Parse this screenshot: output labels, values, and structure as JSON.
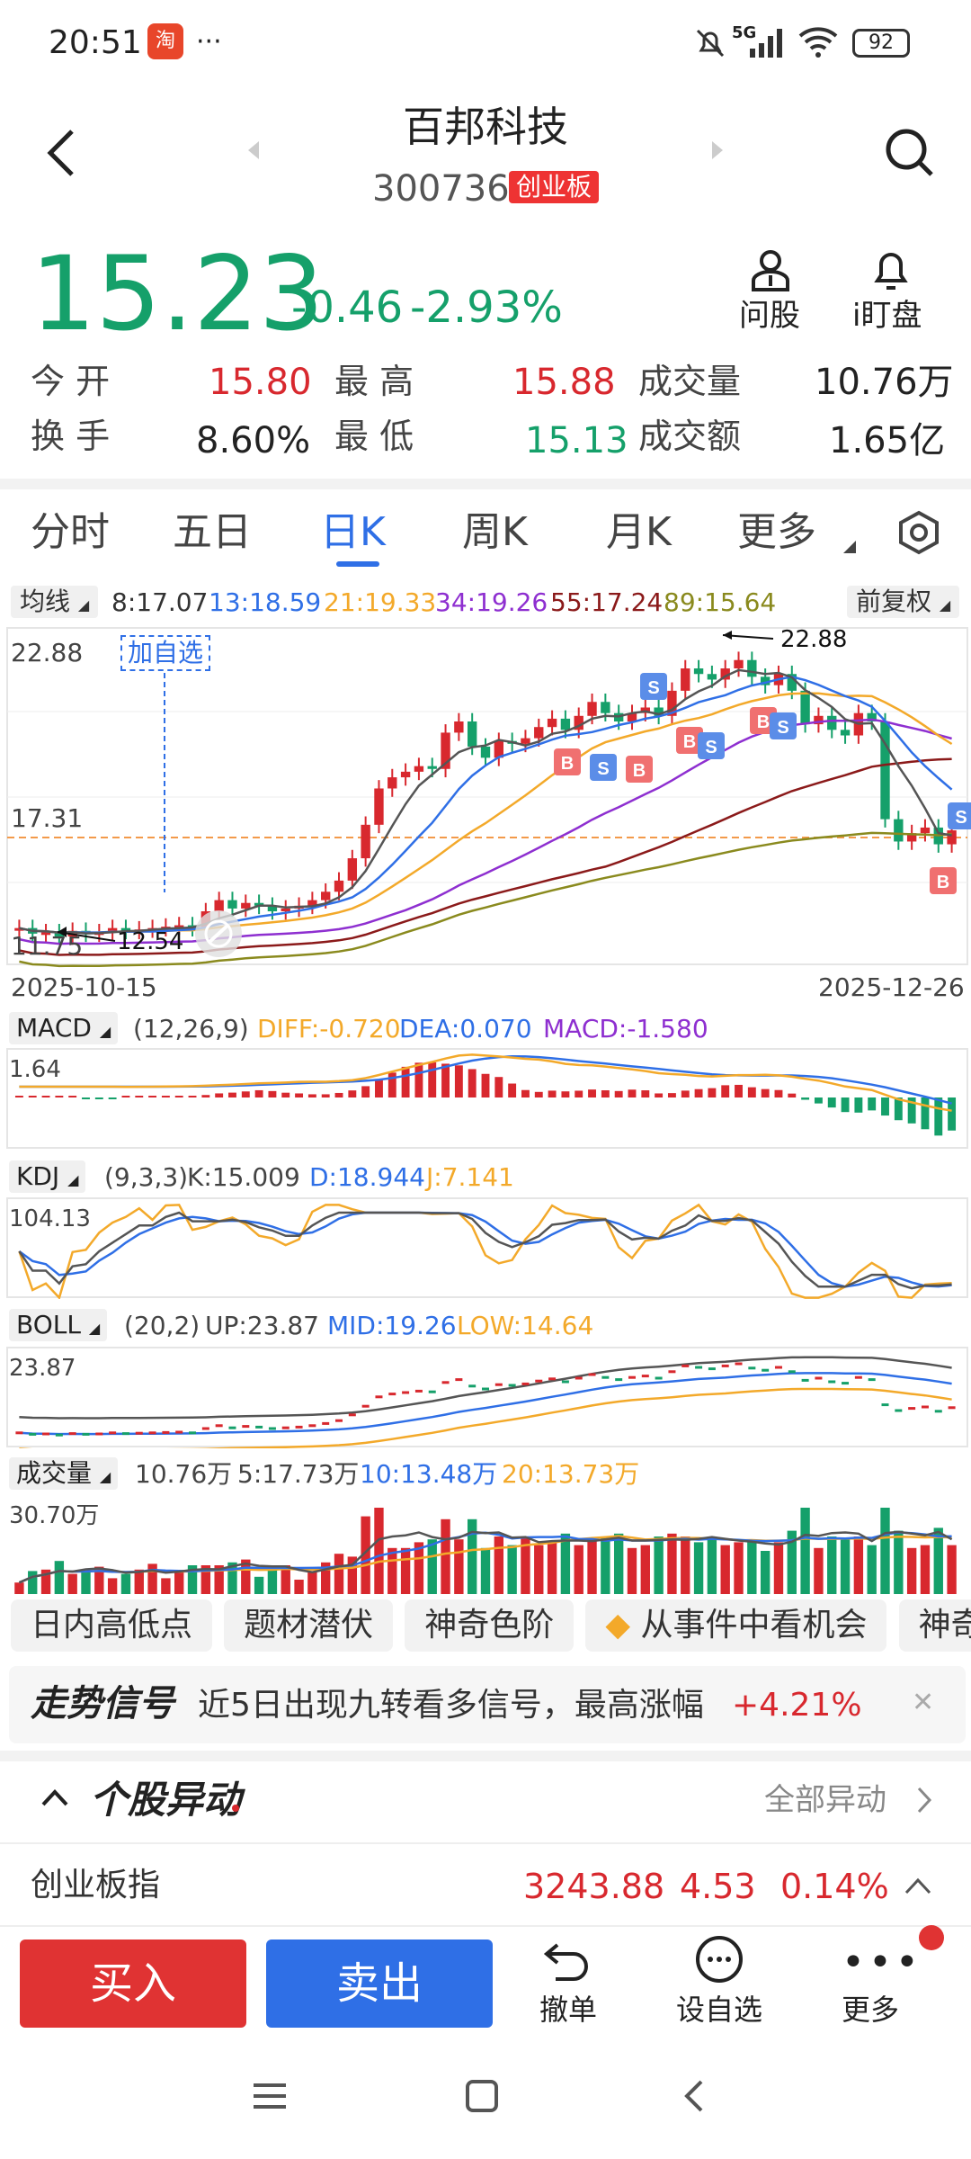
{
  "status_bar": {
    "time": "20:51",
    "more": "···",
    "signal": "5G",
    "battery": "92"
  },
  "header": {
    "title": "百邦科技",
    "code": "300736",
    "board": "创业板"
  },
  "quote": {
    "price": "15.23",
    "change": "-0.46",
    "change_pct": "-2.93%",
    "ask_label": "问股",
    "watch_label": "i盯盘"
  },
  "stats": {
    "open_label": "今 开",
    "open": "15.80",
    "high_label": "最 高",
    "high": "15.88",
    "vol_label": "成交量",
    "vol": "10.76万",
    "turn_label": "换 手",
    "turn": "8.60%",
    "low_label": "最 低",
    "low": "15.13",
    "amt_label": "成交额",
    "amt": "1.65亿"
  },
  "tabs": [
    "分时",
    "五日",
    "日K",
    "周K",
    "月K",
    "更多"
  ],
  "active_tab": 2,
  "ma_bar": {
    "label": "均线",
    "ma5": "8:17.07",
    "ma13": "13:18.59",
    "ma21": "21:19.33",
    "ma34": "34:19.26",
    "ma55": "55:17.24",
    "ma89": "89:15.64",
    "adjust": "前复权"
  },
  "kchart": {
    "y_top": "22.88",
    "y_mid": "17.31",
    "y_bot": "11.75",
    "max_mark": "22.88",
    "min_mark": "12.54",
    "add_watch": "加自选",
    "date_start": "2025-10-15",
    "date_end": "2025-12-26"
  },
  "macd": {
    "label": "MACD",
    "params": "(12,26,9)",
    "diff": "DIFF:-0.720",
    "dea": "DEA:0.070",
    "macd": "MACD:-1.580",
    "top": "1.64"
  },
  "kdj": {
    "label": "KDJ",
    "params": "(9,3,3)",
    "k": "K:15.009",
    "d": "D:18.944",
    "j": "J:7.141",
    "top": "104.13"
  },
  "boll": {
    "label": "BOLL",
    "params": "(20,2)",
    "up": "UP:23.87",
    "mid": "MID:19.26",
    "low": "LOW:14.64",
    "top": "23.87"
  },
  "volume": {
    "label": "成交量",
    "v": "10.76万",
    "ma5": "5:17.73万",
    "ma10": "10:13.48万",
    "ma20": "20:13.73万",
    "top": "30.70万"
  },
  "chips": [
    "日内高低点",
    "题材潜伏",
    "神奇色阶",
    "从事件中看机会",
    "神奇"
  ],
  "signal": {
    "title": "走势信号",
    "text": "近5日出现九转看多信号，最高涨幅",
    "pct": "+4.21%"
  },
  "anomaly": {
    "title": "个股异动",
    "all": "全部异动"
  },
  "index": {
    "name": "创业板指",
    "value": "3243.88",
    "chg": "4.53",
    "pct": "0.14%"
  },
  "actions": {
    "buy": "买入",
    "sell": "卖出",
    "cancel": "撤单",
    "watch": "设自选",
    "more": "更多"
  },
  "colors": {
    "red": "#d8282e",
    "green": "#15a06a",
    "blue": "#2f6fe6",
    "orange": "#f3a92a",
    "purple": "#8e2fd0",
    "darkred": "#8b1a1a",
    "olive": "#8a8a1e",
    "gray": "#555555"
  }
}
